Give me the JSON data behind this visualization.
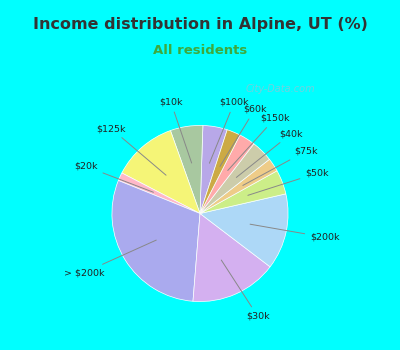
{
  "title": "Income distribution in Alpine, UT (%)",
  "subtitle": "All residents",
  "labels": [
    "$100k",
    "$10k",
    "$125k",
    "$20k",
    "> $200k",
    "$30k",
    "$200k",
    "$50k",
    "$75k",
    "$40k",
    "$150k",
    "$60k"
  ],
  "values": [
    4.5,
    6.0,
    12.0,
    1.5,
    30.0,
    16.0,
    14.0,
    4.5,
    2.5,
    4.0,
    3.0,
    2.5
  ],
  "colors": [
    "#b8a8e8",
    "#a8c8a0",
    "#f5f577",
    "#ffb8c8",
    "#aaaaee",
    "#d4b0f0",
    "#add8f7",
    "#ccee88",
    "#eecc88",
    "#ccccaa",
    "#ffaaaa",
    "#ccaa44"
  ],
  "bg_chart": "#dff5e8",
  "bg_top": "#00ffff",
  "title_color": "#333333",
  "subtitle_color": "#3daa3d",
  "watermark": "City-Data.com",
  "startangle": 72
}
